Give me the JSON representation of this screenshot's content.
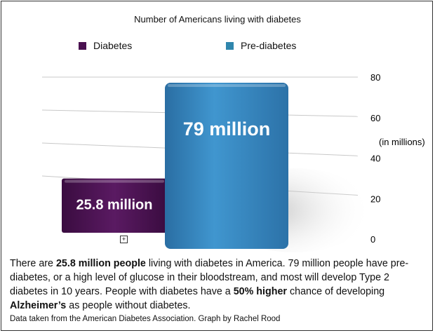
{
  "chart_data": {
    "type": "bar",
    "title": "Number of Americans living with diabetes",
    "categories": [
      "Diabetes",
      "Pre-diabetes"
    ],
    "values": [
      25.8,
      79
    ],
    "data_labels": [
      "25.8 million",
      "79 million"
    ],
    "colors": [
      "#4a1150",
      "#3a87c0"
    ],
    "legend": [
      "Diabetes",
      "Pre-diabetes"
    ],
    "legend_position": "top",
    "ylabel": "(in millions)",
    "yticks": [
      0,
      20,
      40,
      60,
      80
    ],
    "ylim": [
      0,
      80
    ],
    "grid": true
  },
  "text": {
    "p1": "There are ",
    "b1": "25.8 million people",
    "p2": " living with diabetes in America. 79 million people have pre-diabetes, or a high level of glucose in their bloodstream, and most will develop Type 2 diabetes in 10 years. People with diabetes have a ",
    "b2": "50% higher",
    "p3": " chance of developing ",
    "b3": "Alzheimer’s",
    "p4": " as people without diabetes.",
    "source": "Data taken from the American Diabetes Association. Graph by Rachel Rood"
  }
}
